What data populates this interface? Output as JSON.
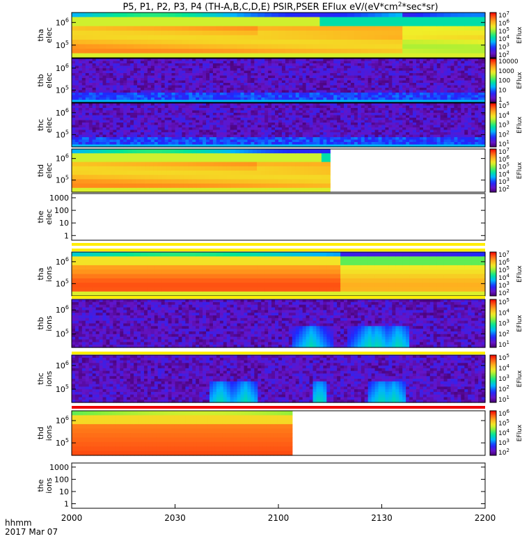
{
  "title": "P5, P1, P2, P3, P4 (TH-A,B,C,D,E) PSIR,PSER EFlux eV/(eV*cm^2*sec*sr)",
  "time_label": "hhmm",
  "date_label": "2017 Mar 07",
  "colorbar_label": "EFlux",
  "chart_data": {
    "type": "heatmap",
    "x_ticks": [
      "2000",
      "2030",
      "2100",
      "2130",
      "2200"
    ],
    "x_range_minutes": [
      0,
      120
    ],
    "panels": [
      {
        "id": "tha-elec",
        "ylabel": [
          "tha",
          "elec"
        ],
        "yticks": [
          "10^5",
          "10^6"
        ],
        "cbar_ticks": [
          "10^7",
          "10^6",
          "10^5",
          "10^4",
          "10^3",
          "10^2"
        ],
        "data_end_min": 120,
        "pattern": "elec_high",
        "strip": false
      },
      {
        "id": "thb-elec",
        "ylabel": [
          "thb",
          "elec"
        ],
        "yticks": [
          "10^5",
          "10^6"
        ],
        "cbar_ticks": [
          "10000",
          "1000",
          "100",
          "10",
          "1"
        ],
        "data_end_min": 120,
        "pattern": "noise_low",
        "strip": false
      },
      {
        "id": "thc-elec",
        "ylabel": [
          "thc",
          "elec"
        ],
        "yticks": [
          "10^5",
          "10^6"
        ],
        "cbar_ticks": [
          "10^5",
          "10^4",
          "10^3",
          "10^2",
          "10^1"
        ],
        "data_end_min": 120,
        "pattern": "noise_low",
        "strip": false
      },
      {
        "id": "thd-elec",
        "ylabel": [
          "thd",
          "elec"
        ],
        "yticks": [
          "10^5",
          "10^6"
        ],
        "cbar_ticks": [
          "10^7",
          "10^6",
          "10^5",
          "10^4",
          "10^3",
          "10^2"
        ],
        "data_end_min": 75,
        "pattern": "elec_high",
        "strip": false
      },
      {
        "id": "the-elec",
        "ylabel": [
          "the",
          "elec"
        ],
        "yticks": [
          "1",
          "10",
          "100",
          "1000"
        ],
        "cbar_ticks": [],
        "data_end_min": 0,
        "pattern": "empty",
        "strip": "yellow"
      },
      {
        "id": "tha-ions",
        "ylabel": [
          "tha",
          "ions"
        ],
        "yticks": [
          "10^5",
          "10^6"
        ],
        "cbar_ticks": [
          "10^7",
          "10^6",
          "10^5",
          "10^4",
          "10^3",
          "10^2"
        ],
        "data_end_min": 120,
        "pattern": "ion_high",
        "strip": "yellow"
      },
      {
        "id": "thb-ions",
        "ylabel": [
          "thb",
          "ions"
        ],
        "yticks": [
          "10^5",
          "10^6"
        ],
        "cbar_ticks": [
          "10^5",
          "10^4",
          "10^3",
          "10^2",
          "10^1"
        ],
        "data_end_min": 120,
        "pattern": "ion_noise",
        "strip": "yellow"
      },
      {
        "id": "thc-ions",
        "ylabel": [
          "thc",
          "ions"
        ],
        "yticks": [
          "10^5",
          "10^6"
        ],
        "cbar_ticks": [
          "10^5",
          "10^4",
          "10^3",
          "10^2",
          "10^1"
        ],
        "data_end_min": 120,
        "pattern": "ion_noise2",
        "strip": "yellow"
      },
      {
        "id": "thd-ions",
        "ylabel": [
          "thd",
          "ions"
        ],
        "yticks": [
          "10^5",
          "10^6"
        ],
        "cbar_ticks": [
          "10^6",
          "10^5",
          "10^4",
          "10^3",
          "10^2"
        ],
        "data_end_min": 64,
        "pattern": "ion_thd",
        "strip": "red"
      },
      {
        "id": "the-ions",
        "ylabel": [
          "the",
          "ions"
        ],
        "yticks": [
          "1",
          "10",
          "100",
          "1000"
        ],
        "cbar_ticks": [],
        "data_end_min": 0,
        "pattern": "empty",
        "strip": false
      }
    ]
  }
}
